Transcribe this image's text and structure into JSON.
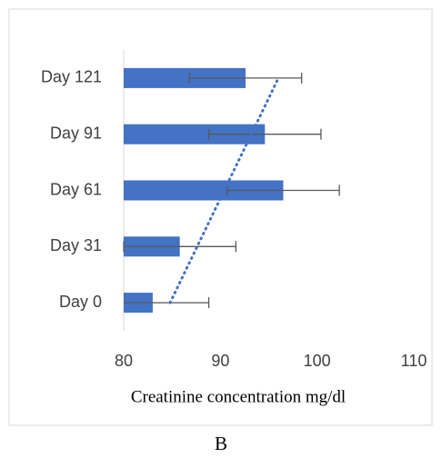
{
  "chart_data": {
    "type": "bar",
    "orientation": "horizontal",
    "categories": [
      "Day 0",
      "Day 31",
      "Day 61",
      "Day 91",
      "Day 121"
    ],
    "values": [
      83.0,
      85.8,
      96.5,
      94.6,
      92.6
    ],
    "errors": [
      5.8,
      5.8,
      5.8,
      5.8,
      5.8
    ],
    "color": "#4472c4",
    "trendline": [
      84.8,
      87.6,
      90.4,
      93.2,
      96.0
    ],
    "xlim": [
      80,
      110
    ],
    "xticks": [
      80,
      90,
      100,
      110
    ],
    "xlabel": "Creatinine concentration mg/dl",
    "caption": "B"
  }
}
